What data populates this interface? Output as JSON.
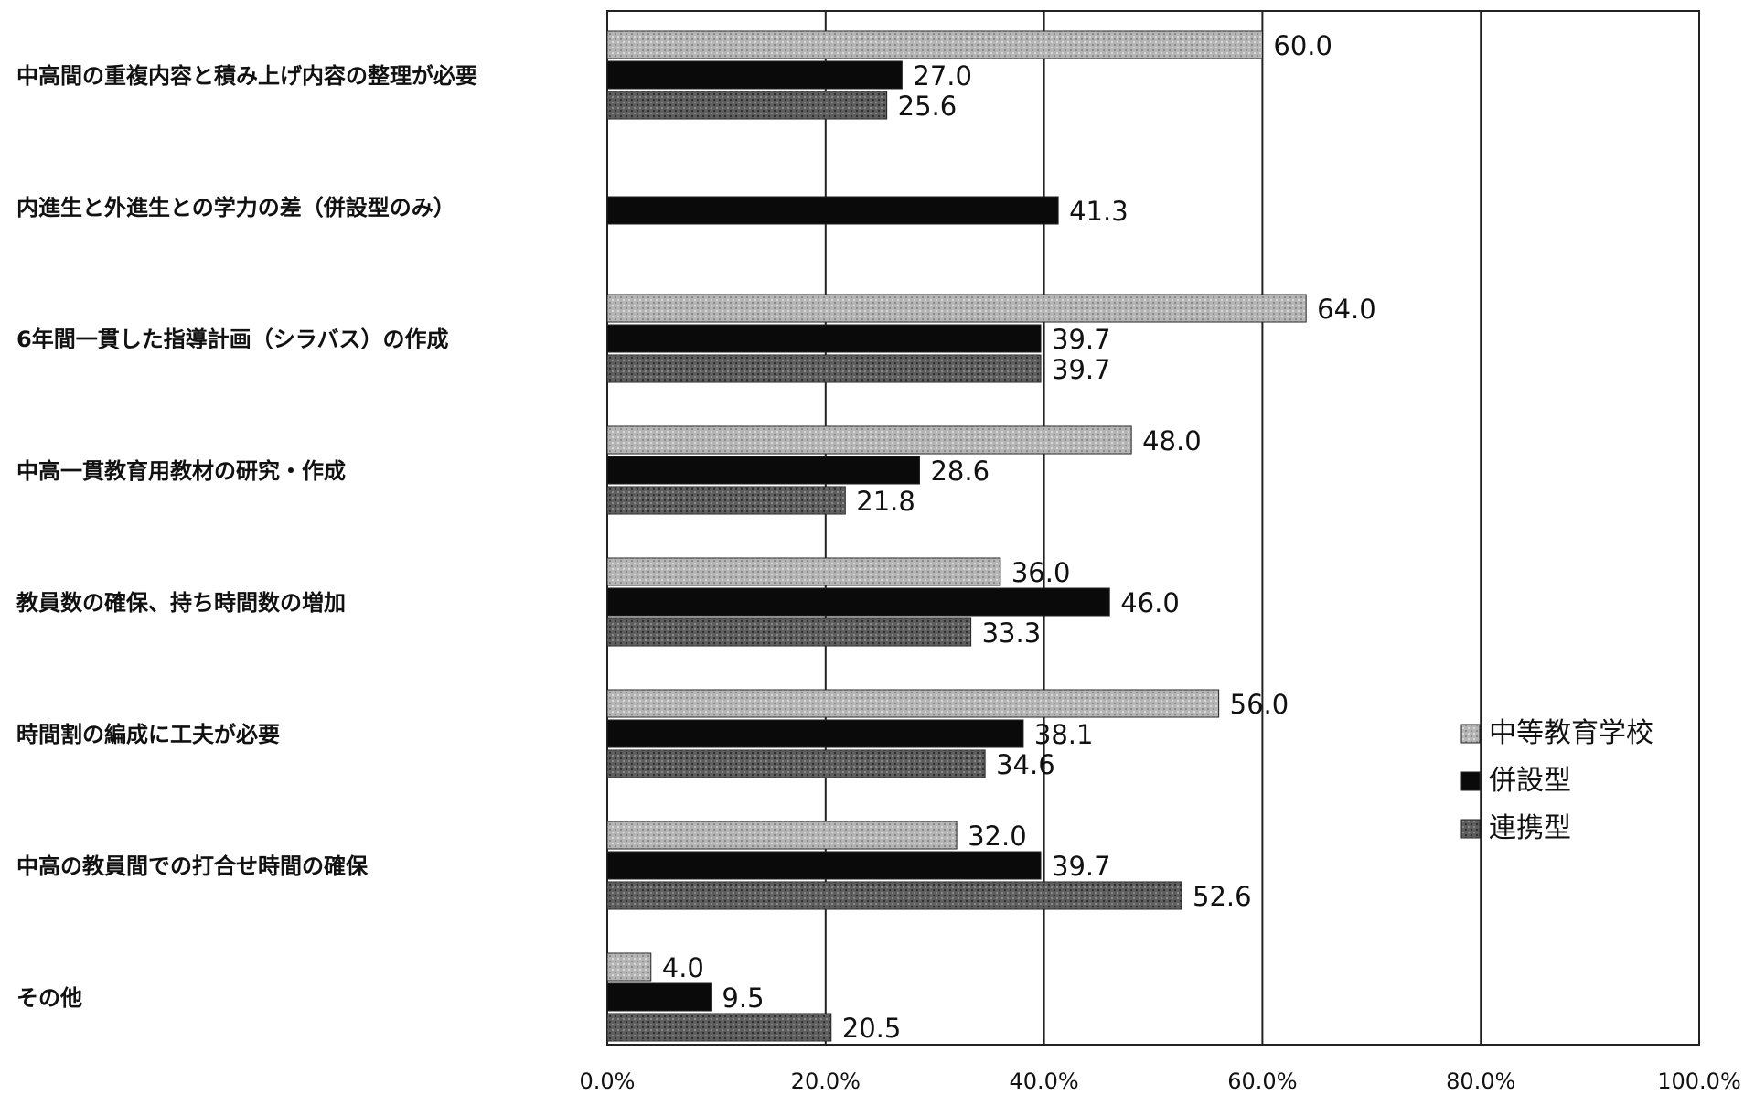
{
  "chart_data": {
    "type": "bar",
    "orientation": "horizontal",
    "categories": [
      "中高間の重複内容と積み上げ内容の整理が必要",
      "内進生と外進生との学力の差（併設型のみ）",
      "6年間一貫した指導計画（シラバス）の作成",
      "中高一貫教育用教材の研究・作成",
      "教員数の確保、持ち時間数の増加",
      "時間割の編成に工夫が必要",
      "中高の教員間での打合せ時間の確保",
      "その他"
    ],
    "series": [
      {
        "name": "中等教育学校",
        "values": [
          60.0,
          null,
          64.0,
          48.0,
          36.0,
          56.0,
          32.0,
          4.0
        ],
        "color": "#a9a9a9"
      },
      {
        "name": "併設型",
        "values": [
          27.0,
          41.3,
          39.7,
          28.6,
          46.0,
          38.1,
          39.7,
          9.5
        ],
        "color": "#0a0a0a"
      },
      {
        "name": "連携型",
        "values": [
          25.6,
          null,
          39.7,
          21.8,
          33.3,
          34.6,
          52.6,
          20.5
        ],
        "color": "#5a5a5a"
      }
    ],
    "value_labels": [
      [
        "60.0",
        null,
        "64.0",
        "48.0",
        "36.0",
        "56.0",
        "32.0",
        "4.0"
      ],
      [
        "27.0",
        "41.3",
        "39.7",
        "28.6",
        "46.0",
        "38.1",
        "39.7",
        "9.5"
      ],
      [
        "25.6",
        null,
        "39.7",
        "21.8",
        "33.3",
        "34.6",
        "52.6",
        "20.5"
      ]
    ],
    "xlim": [
      0,
      100
    ],
    "xticks": [
      "0.0%",
      "20.0%",
      "40.0%",
      "60.0%",
      "80.0%",
      "100.0%"
    ],
    "grid": true,
    "legend_position": "right"
  }
}
